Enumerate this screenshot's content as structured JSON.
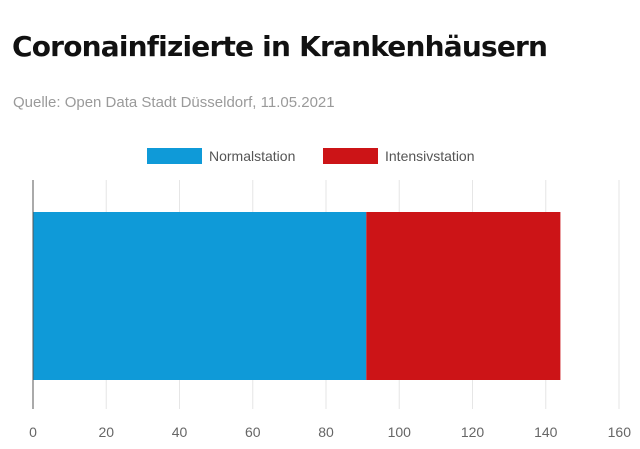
{
  "header": {
    "title": "Coronainfizierte in Krankenhäusern",
    "subtitle": "Quelle: Open Data Stadt Düsseldorf, 11.05.2021"
  },
  "chart_data": {
    "type": "bar",
    "orientation": "horizontal",
    "stacked": true,
    "categories": [
      ""
    ],
    "series": [
      {
        "name": "Normalstation",
        "values": [
          91
        ],
        "color": "#0f9ad8"
      },
      {
        "name": "Intensivstation",
        "values": [
          53
        ],
        "color": "#cc1417"
      }
    ],
    "xlim": [
      0,
      160
    ],
    "xticks": [
      0,
      20,
      40,
      60,
      80,
      100,
      120,
      140,
      160
    ],
    "grid": "vertical",
    "legend_position": "top-center",
    "title": "Coronainfizierte in Krankenhäusern",
    "subtitle": "Quelle: Open Data Stadt Düsseldorf, 11.05.2021"
  }
}
